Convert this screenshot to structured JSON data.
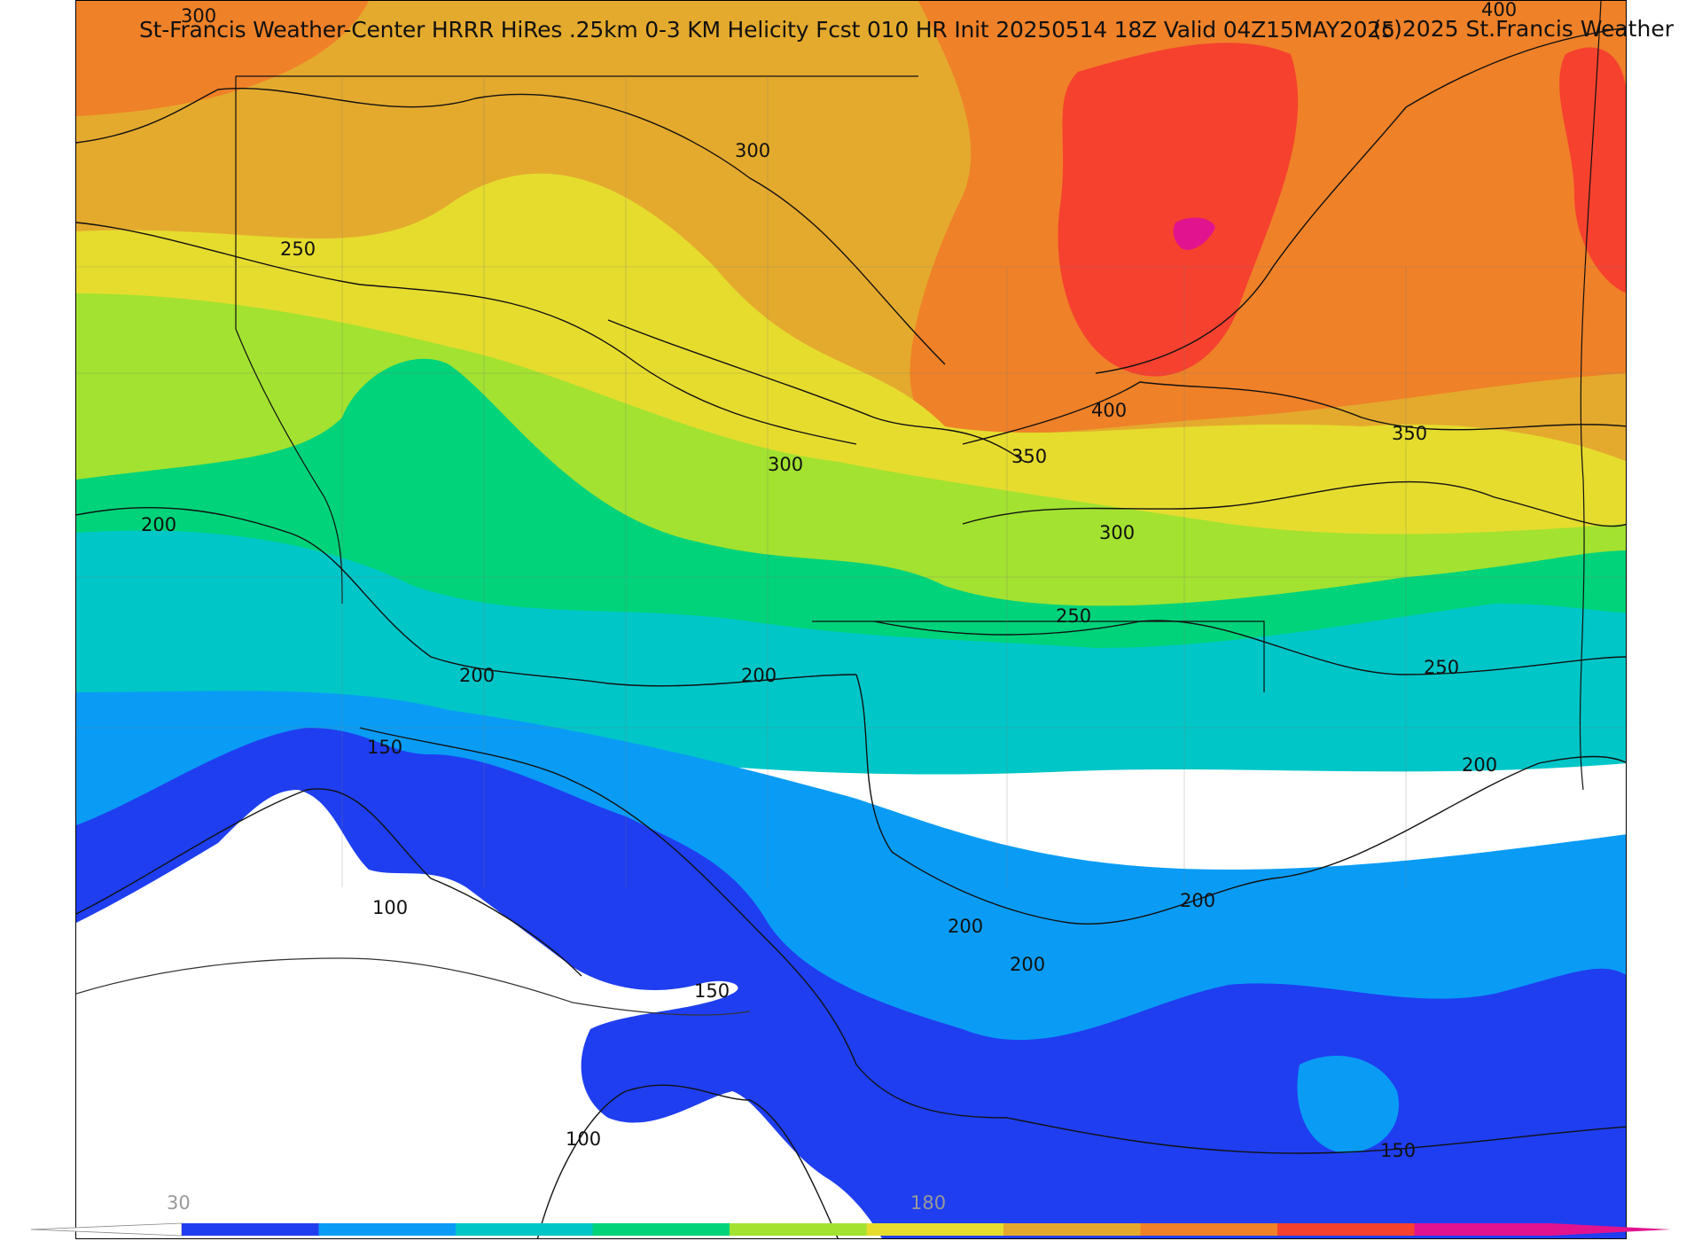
{
  "header": {
    "title": "St-Francis Weather-Center HRRR HiRes .25km 0-3 KM Helicity Fcst 010 HR Init 20250514 18Z  Valid 04Z15MAY2025",
    "copyright": "(c)2025 St.Francis Weather"
  },
  "contour_labels": [
    "300",
    "250",
    "300",
    "200",
    "300",
    "350",
    "400",
    "400",
    "350",
    "300",
    "250",
    "250",
    "200",
    "200",
    "150",
    "200",
    "100",
    "150",
    "100",
    "200",
    "200",
    "200",
    "150"
  ],
  "colorbar": {
    "tick_labels": [
      "30",
      "180"
    ],
    "colors": [
      "#1f3ef0",
      "#0a9cf5",
      "#00c6c8",
      "#00d37a",
      "#a3e230",
      "#e6dc2e",
      "#e4aa2d",
      "#ef8128",
      "#f6412f",
      "#e2138e"
    ]
  },
  "legend_colors": {
    "below_100": "#ffffff",
    "100_150": "#1f3ef0",
    "150_200": "#0a9cf5",
    "200_230": "#00c6c8",
    "230_260": "#00d37a",
    "260_290": "#a3e230",
    "290_320": "#e6dc2e",
    "320_360": "#e4aa2d",
    "360_400": "#ef8128",
    "400_450": "#f6412f",
    "450_plus": "#e2138e"
  }
}
